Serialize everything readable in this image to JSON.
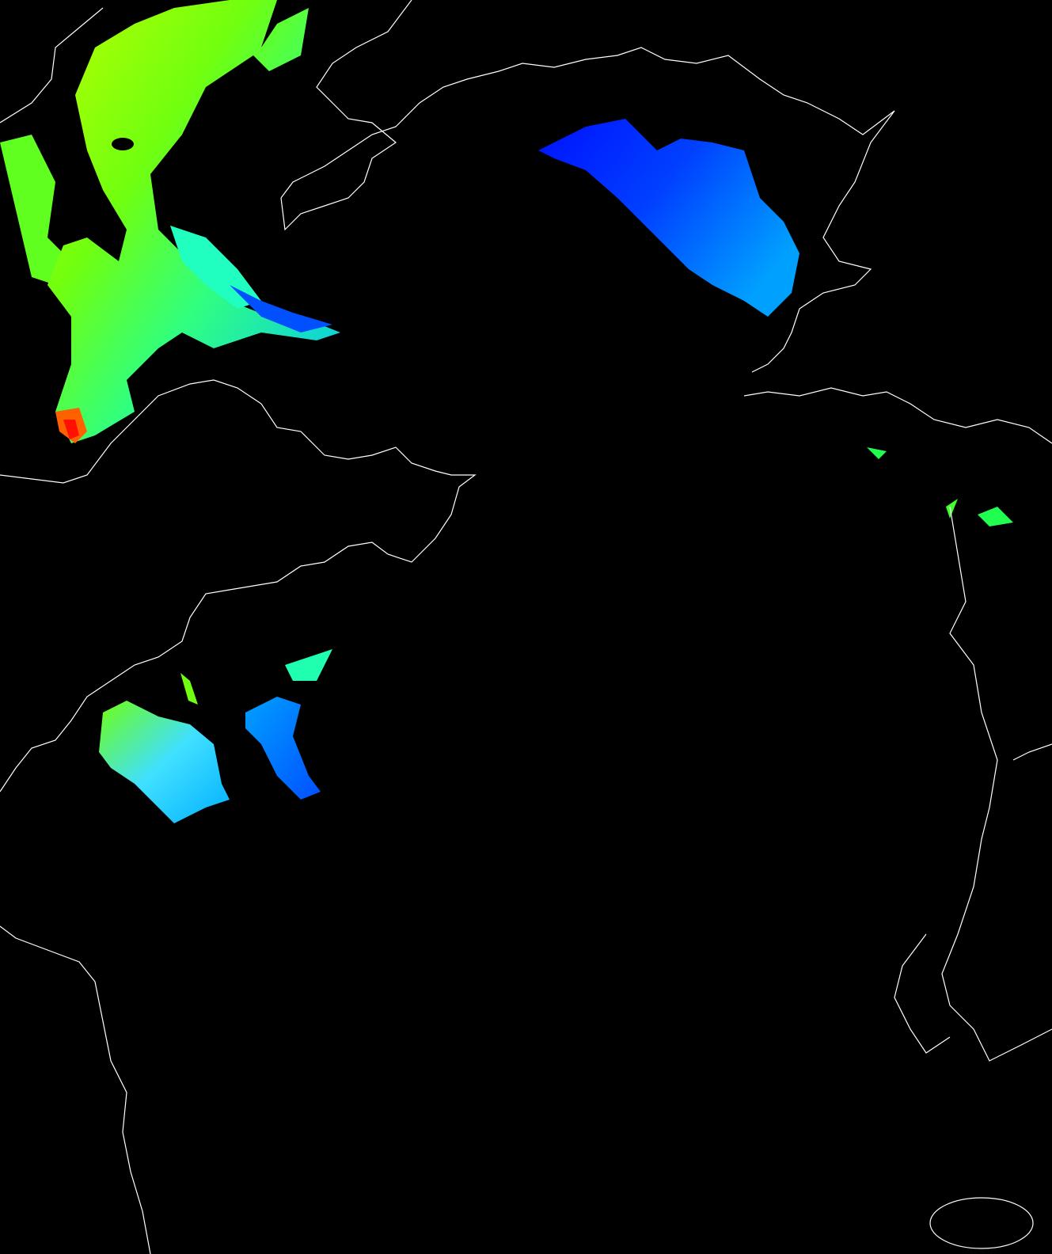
{
  "map": {
    "background_color": "#000000",
    "coastline_color": "#ffffff",
    "colormap": [
      "#0000ff",
      "#0080ff",
      "#00ffff",
      "#00ff60",
      "#80ff00",
      "#ffff00",
      "#ff8000",
      "#ff0000"
    ]
  }
}
